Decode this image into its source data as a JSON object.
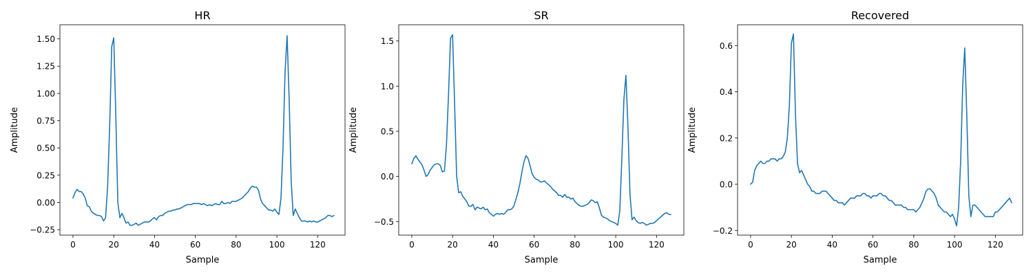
{
  "chart_data": [
    {
      "type": "line",
      "title": "HR",
      "xlabel": "Sample",
      "ylabel": "Amplitude",
      "xlim": [
        -6.4,
        133.4
      ],
      "ylim": [
        -0.3,
        1.63
      ],
      "xticks": [
        0,
        20,
        40,
        60,
        80,
        100,
        120
      ],
      "xtick_labels": [
        "0",
        "20",
        "40",
        "60",
        "80",
        "100",
        "120"
      ],
      "yticks": [
        -0.25,
        0.0,
        0.25,
        0.5,
        0.75,
        1.0,
        1.25,
        1.5
      ],
      "ytick_labels": [
        "−0.25",
        "0.00",
        "0.25",
        "0.50",
        "0.75",
        "1.00",
        "1.25",
        "1.50"
      ],
      "color": "#1f77b4",
      "series": [
        {
          "values": [
            0.04,
            0.09,
            0.12,
            0.1,
            0.1,
            0.08,
            0.04,
            -0.03,
            -0.04,
            -0.08,
            -0.1,
            -0.11,
            -0.12,
            -0.12,
            -0.13,
            -0.17,
            -0.14,
            0.15,
            0.7,
            1.43,
            1.51,
            0.8,
            0.0,
            -0.14,
            -0.1,
            -0.14,
            -0.19,
            -0.18,
            -0.21,
            -0.21,
            -0.2,
            -0.19,
            -0.21,
            -0.2,
            -0.19,
            -0.18,
            -0.18,
            -0.18,
            -0.17,
            -0.15,
            -0.14,
            -0.16,
            -0.13,
            -0.12,
            -0.12,
            -0.1,
            -0.09,
            -0.08,
            -0.08,
            -0.07,
            -0.07,
            -0.06,
            -0.06,
            -0.05,
            -0.04,
            -0.03,
            -0.02,
            -0.02,
            -0.02,
            -0.01,
            -0.01,
            -0.01,
            -0.01,
            -0.02,
            -0.01,
            -0.02,
            -0.03,
            -0.02,
            -0.03,
            -0.02,
            -0.01,
            -0.02,
            -0.02,
            0.01,
            -0.01,
            -0.01,
            0.0,
            -0.01,
            0.01,
            0.01,
            0.01,
            0.02,
            0.03,
            0.04,
            0.06,
            0.08,
            0.1,
            0.13,
            0.15,
            0.14,
            0.14,
            0.11,
            0.03,
            -0.01,
            -0.03,
            -0.05,
            -0.07,
            -0.07,
            -0.08,
            -0.06,
            -0.09,
            -0.11,
            0.04,
            0.5,
            1.2,
            1.53,
            0.95,
            0.2,
            -0.12,
            -0.06,
            -0.1,
            -0.14,
            -0.17,
            -0.17,
            -0.17,
            -0.18,
            -0.17,
            -0.18,
            -0.17,
            -0.18,
            -0.18,
            -0.17,
            -0.16,
            -0.15,
            -0.14,
            -0.12,
            -0.12,
            -0.13,
            -0.12
          ]
        }
      ]
    },
    {
      "type": "line",
      "title": "SR",
      "xlabel": "Sample",
      "ylabel": "Amplitude",
      "xlim": [
        -6.4,
        133.4
      ],
      "ylim": [
        -0.65,
        1.68
      ],
      "xticks": [
        0,
        20,
        40,
        60,
        80,
        100,
        120
      ],
      "xtick_labels": [
        "0",
        "20",
        "40",
        "60",
        "80",
        "100",
        "120"
      ],
      "yticks": [
        -0.5,
        0.0,
        0.5,
        1.0,
        1.5
      ],
      "ytick_labels": [
        "−0.5",
        "0.0",
        "0.5",
        "1.0",
        "1.5"
      ],
      "color": "#1f77b4",
      "series": [
        {
          "values": [
            0.14,
            0.2,
            0.23,
            0.19,
            0.16,
            0.13,
            0.07,
            0.0,
            0.02,
            0.07,
            0.1,
            0.13,
            0.14,
            0.14,
            0.12,
            0.05,
            0.06,
            0.35,
            0.9,
            1.53,
            1.57,
            0.8,
            0.0,
            -0.18,
            -0.17,
            -0.22,
            -0.25,
            -0.28,
            -0.33,
            -0.33,
            -0.31,
            -0.37,
            -0.34,
            -0.35,
            -0.36,
            -0.34,
            -0.37,
            -0.36,
            -0.4,
            -0.42,
            -0.44,
            -0.42,
            -0.41,
            -0.42,
            -0.41,
            -0.42,
            -0.4,
            -0.37,
            -0.37,
            -0.36,
            -0.33,
            -0.26,
            -0.18,
            -0.08,
            0.05,
            0.16,
            0.23,
            0.2,
            0.12,
            0.03,
            -0.01,
            -0.03,
            -0.04,
            -0.06,
            -0.06,
            -0.05,
            -0.07,
            -0.09,
            -0.11,
            -0.14,
            -0.16,
            -0.18,
            -0.21,
            -0.21,
            -0.23,
            -0.2,
            -0.23,
            -0.23,
            -0.25,
            -0.24,
            -0.28,
            -0.3,
            -0.32,
            -0.33,
            -0.33,
            -0.32,
            -0.31,
            -0.29,
            -0.26,
            -0.27,
            -0.29,
            -0.28,
            -0.35,
            -0.43,
            -0.45,
            -0.46,
            -0.47,
            -0.49,
            -0.5,
            -0.51,
            -0.52,
            -0.54,
            -0.38,
            0.2,
            0.85,
            1.12,
            0.55,
            -0.2,
            -0.48,
            -0.45,
            -0.49,
            -0.51,
            -0.52,
            -0.51,
            -0.52,
            -0.54,
            -0.53,
            -0.52,
            -0.52,
            -0.51,
            -0.49,
            -0.47,
            -0.45,
            -0.43,
            -0.41,
            -0.4,
            -0.42,
            -0.42
          ]
        }
      ]
    },
    {
      "type": "line",
      "title": "Recovered",
      "xlabel": "Sample",
      "ylabel": "Amplitude",
      "xlim": [
        -6.4,
        133.4
      ],
      "ylim": [
        -0.22,
        0.69
      ],
      "xticks": [
        0,
        20,
        40,
        60,
        80,
        100,
        120
      ],
      "xtick_labels": [
        "0",
        "20",
        "40",
        "60",
        "80",
        "100",
        "120"
      ],
      "yticks": [
        -0.2,
        0.0,
        0.2,
        0.4,
        0.6
      ],
      "ytick_labels": [
        "−0.2",
        "0.0",
        "0.2",
        "0.4",
        "0.6"
      ],
      "color": "#1f77b4",
      "series": [
        {
          "values": [
            0.0,
            0.01,
            0.06,
            0.08,
            0.09,
            0.1,
            0.09,
            0.09,
            0.1,
            0.1,
            0.11,
            0.11,
            0.11,
            0.1,
            0.11,
            0.11,
            0.12,
            0.14,
            0.2,
            0.34,
            0.61,
            0.65,
            0.3,
            0.09,
            0.05,
            0.06,
            0.04,
            0.02,
            0.0,
            -0.01,
            -0.03,
            -0.03,
            -0.04,
            -0.04,
            -0.04,
            -0.03,
            -0.03,
            -0.03,
            -0.04,
            -0.05,
            -0.06,
            -0.07,
            -0.07,
            -0.08,
            -0.08,
            -0.08,
            -0.09,
            -0.08,
            -0.07,
            -0.06,
            -0.06,
            -0.06,
            -0.05,
            -0.05,
            -0.05,
            -0.04,
            -0.04,
            -0.05,
            -0.05,
            -0.06,
            -0.05,
            -0.05,
            -0.05,
            -0.04,
            -0.04,
            -0.05,
            -0.05,
            -0.06,
            -0.07,
            -0.07,
            -0.08,
            -0.09,
            -0.09,
            -0.09,
            -0.09,
            -0.1,
            -0.1,
            -0.11,
            -0.11,
            -0.11,
            -0.11,
            -0.12,
            -0.11,
            -0.1,
            -0.08,
            -0.06,
            -0.03,
            -0.02,
            -0.02,
            -0.03,
            -0.04,
            -0.06,
            -0.09,
            -0.1,
            -0.11,
            -0.12,
            -0.12,
            -0.13,
            -0.14,
            -0.13,
            -0.15,
            -0.18,
            -0.1,
            0.1,
            0.43,
            0.59,
            0.3,
            -0.05,
            -0.14,
            -0.09,
            -0.09,
            -0.1,
            -0.11,
            -0.12,
            -0.13,
            -0.14,
            -0.14,
            -0.14,
            -0.14,
            -0.14,
            -0.12,
            -0.12,
            -0.11,
            -0.1,
            -0.09,
            -0.08,
            -0.07,
            -0.06,
            -0.08
          ]
        }
      ]
    }
  ]
}
